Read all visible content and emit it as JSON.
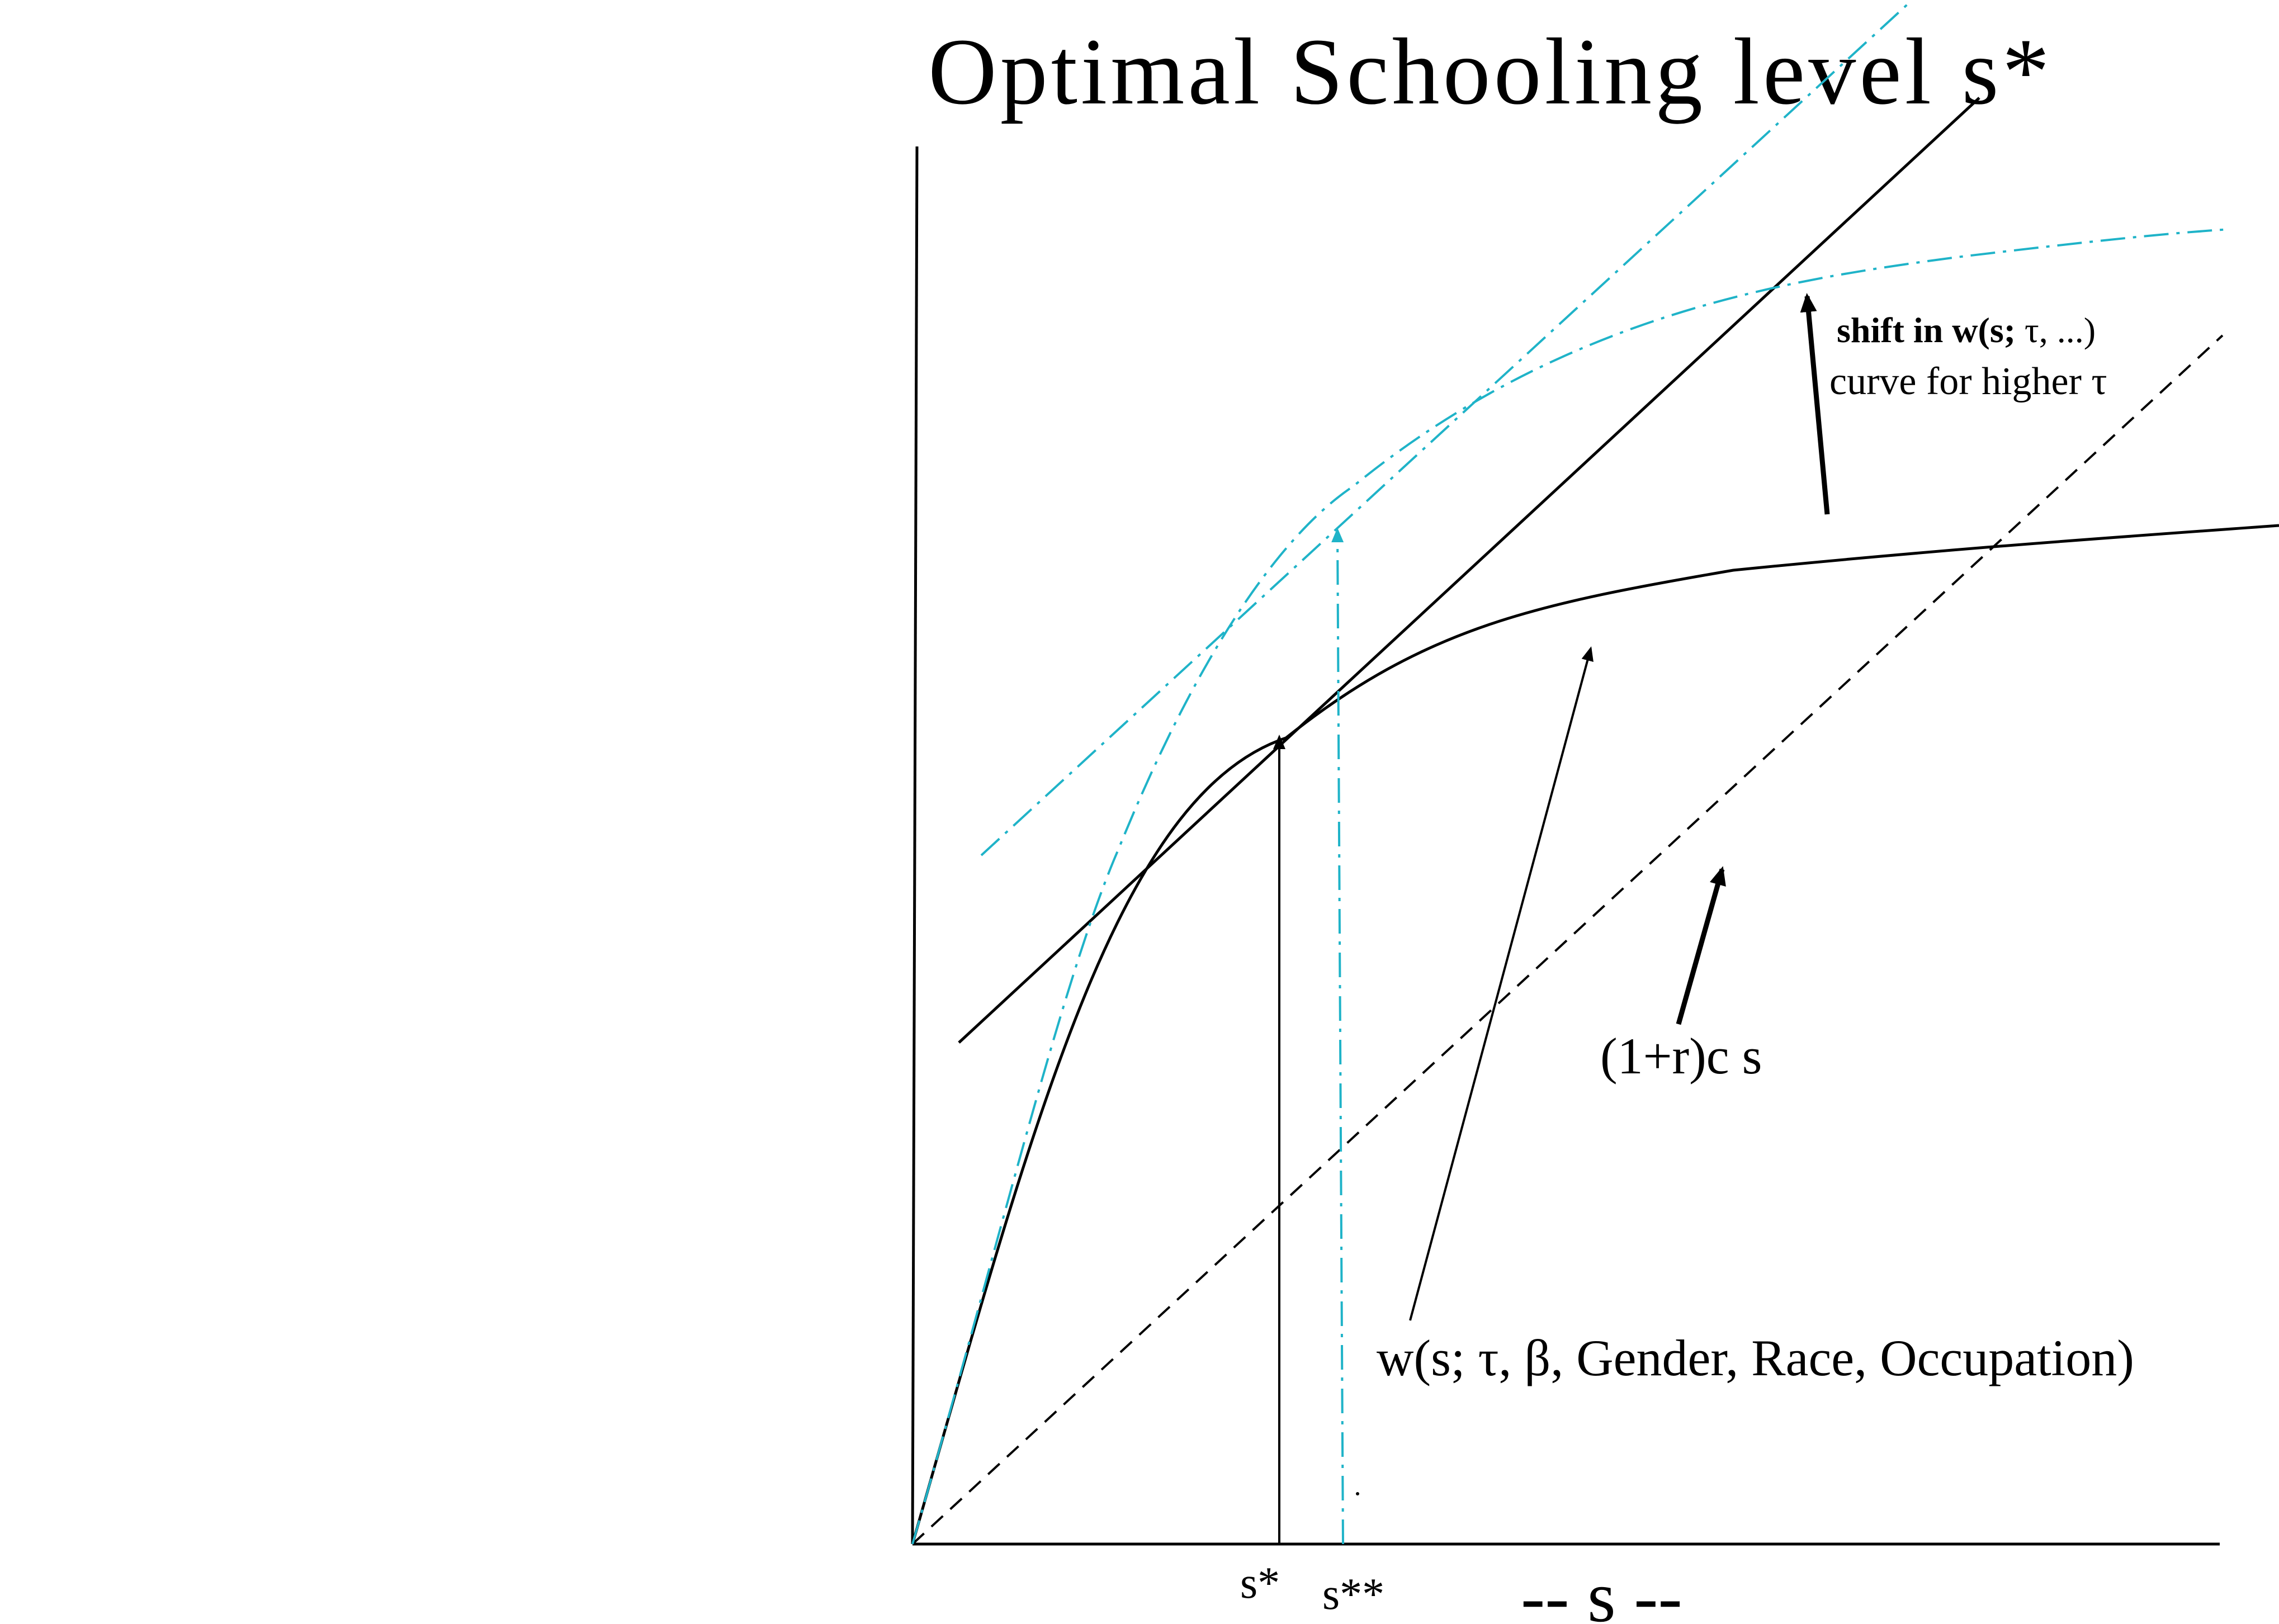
{
  "title": "Optimal Schooling level s*",
  "colors": {
    "ink": "#000000",
    "shift": "#1fb3c8",
    "background": "#ffffff"
  },
  "labels": {
    "s_star": "s*",
    "s_double_star": "s**",
    "x_axis": "-- s --",
    "cost_line": "(1+r)c s",
    "wage_curve": "w(s; τ, β, Gender, Race, Occupation)",
    "shift_line1_bold": "shift in w(s;",
    "shift_line1_rest": " τ, ...)",
    "shift_line2": "curve for higher τ"
  },
  "chart_data": {
    "type": "diagram",
    "title": "Optimal Schooling level s*",
    "x_axis_label": "-- s --",
    "x_tick_labels": [
      "s*",
      "s**"
    ],
    "curves": [
      {
        "id": "wage_curve",
        "label": "w(s; τ, β, Gender, Race, Occupation)",
        "style": "solid",
        "shape": "concave, increasing"
      },
      {
        "id": "cost_line",
        "label": "(1+r)c s",
        "style": "dashed",
        "shape": "linear through origin"
      },
      {
        "id": "tangent_at_s_star",
        "label": "",
        "style": "solid",
        "shape": "line tangent to wage curve at s*"
      },
      {
        "id": "shifted_wage_curve",
        "label": "shift in w(s; τ, ...) curve for higher τ",
        "style": "dash-dot",
        "shape": "concave, increasing, above original"
      },
      {
        "id": "tangent_at_s_double_star",
        "label": "",
        "style": "dash-dot",
        "shape": "line tangent to shifted curve at s**"
      }
    ],
    "equilibria": [
      {
        "label": "s*",
        "curve": "wage_curve"
      },
      {
        "label": "s**",
        "curve": "shifted_wage_curve"
      }
    ]
  }
}
